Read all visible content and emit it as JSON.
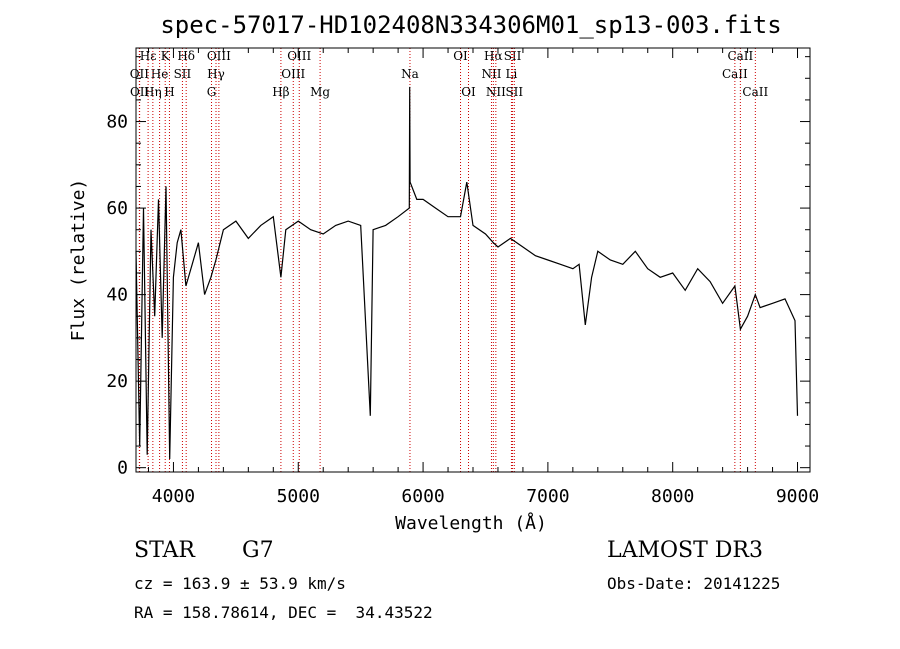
{
  "chart_data": {
    "type": "line",
    "title": "spec-57017-HD102408N334306M01_sp13-003.fits",
    "xlabel": "Wavelength (Å)",
    "ylabel": "Flux (relative)",
    "xlim": [
      3700,
      9100
    ],
    "ylim": [
      -1,
      97
    ],
    "x_ticks": [
      4000,
      5000,
      6000,
      7000,
      8000,
      9000
    ],
    "y_ticks": [
      0,
      20,
      40,
      60,
      80
    ],
    "grid": false,
    "series": [
      {
        "name": "flux",
        "x": [
          3700,
          3730,
          3760,
          3790,
          3820,
          3850,
          3880,
          3910,
          3940,
          3970,
          4000,
          4030,
          4060,
          4100,
          4150,
          4200,
          4250,
          4300,
          4340,
          4400,
          4500,
          4600,
          4700,
          4800,
          4861,
          4900,
          5000,
          5100,
          5200,
          5300,
          5400,
          5500,
          5577,
          5600,
          5700,
          5800,
          5890,
          5893,
          5896,
          5950,
          6000,
          6100,
          6200,
          6300,
          6350,
          6400,
          6500,
          6563,
          6600,
          6700,
          6800,
          6900,
          7000,
          7100,
          7200,
          7250,
          7300,
          7350,
          7400,
          7500,
          7600,
          7700,
          7800,
          7900,
          8000,
          8100,
          8200,
          8300,
          8400,
          8498,
          8542,
          8600,
          8662,
          8700,
          8800,
          8900,
          8980,
          9000
        ],
        "values": [
          50,
          5,
          60,
          3,
          55,
          35,
          62,
          30,
          65,
          2,
          44,
          52,
          55,
          42,
          47,
          52,
          40,
          44,
          48,
          55,
          57,
          53,
          56,
          58,
          44,
          55,
          57,
          55,
          54,
          56,
          57,
          56,
          12,
          55,
          56,
          58,
          60,
          88,
          66,
          62,
          62,
          60,
          58,
          58,
          66,
          56,
          54,
          52,
          51,
          53,
          51,
          49,
          48,
          47,
          46,
          47,
          33,
          44,
          50,
          48,
          47,
          50,
          46,
          44,
          45,
          41,
          46,
          43,
          38,
          42,
          32,
          35,
          40,
          37,
          38,
          39,
          34,
          12
        ]
      }
    ],
    "lines": [
      {
        "name": "Hε",
        "x": 3797,
        "row": 0
      },
      {
        "name": "OII",
        "x": 3727,
        "row": 1
      },
      {
        "name": "OII",
        "x": 3729,
        "row": 2
      },
      {
        "name": "He",
        "x": 3889,
        "row": 1
      },
      {
        "name": "Hη",
        "x": 3835,
        "row": 2
      },
      {
        "name": "K",
        "x": 3934,
        "row": 0
      },
      {
        "name": "H",
        "x": 3968,
        "row": 2
      },
      {
        "name": "SII",
        "x": 4072,
        "row": 1
      },
      {
        "name": "Hδ",
        "x": 4102,
        "row": 0
      },
      {
        "name": "G",
        "x": 4305,
        "row": 2
      },
      {
        "name": "Hγ",
        "x": 4341,
        "row": 1
      },
      {
        "name": "OIII",
        "x": 4364,
        "row": 0
      },
      {
        "name": "Hβ",
        "x": 4861,
        "row": 2
      },
      {
        "name": "OIII",
        "x": 4960,
        "row": 1
      },
      {
        "name": "OIII",
        "x": 5008,
        "row": 0
      },
      {
        "name": "Mg",
        "x": 5175,
        "row": 2
      },
      {
        "name": "Na",
        "x": 5895,
        "row": 1
      },
      {
        "name": "OI",
        "x": 6300,
        "row": 0
      },
      {
        "name": "OI",
        "x": 6364,
        "row": 2
      },
      {
        "name": "NII",
        "x": 6548,
        "row": 1
      },
      {
        "name": "Hα",
        "x": 6563,
        "row": 0
      },
      {
        "name": "NII",
        "x": 6583,
        "row": 2
      },
      {
        "name": "Li",
        "x": 6708,
        "row": 1
      },
      {
        "name": "SII",
        "x": 6717,
        "row": 0
      },
      {
        "name": "SII",
        "x": 6731,
        "row": 2
      },
      {
        "name": "CaII",
        "x": 8498,
        "row": 1
      },
      {
        "name": "CaII",
        "x": 8542,
        "row": 0
      },
      {
        "name": "CaII",
        "x": 8662,
        "row": 2
      }
    ]
  },
  "info": {
    "class": "STAR",
    "subclass": "G7",
    "survey": "LAMOST DR3",
    "cz": "cz = 163.9 ± 53.9 km/s",
    "obs_date": "Obs-Date: 20141225",
    "radec": "RA = 158.78614, DEC =  34.43522"
  }
}
